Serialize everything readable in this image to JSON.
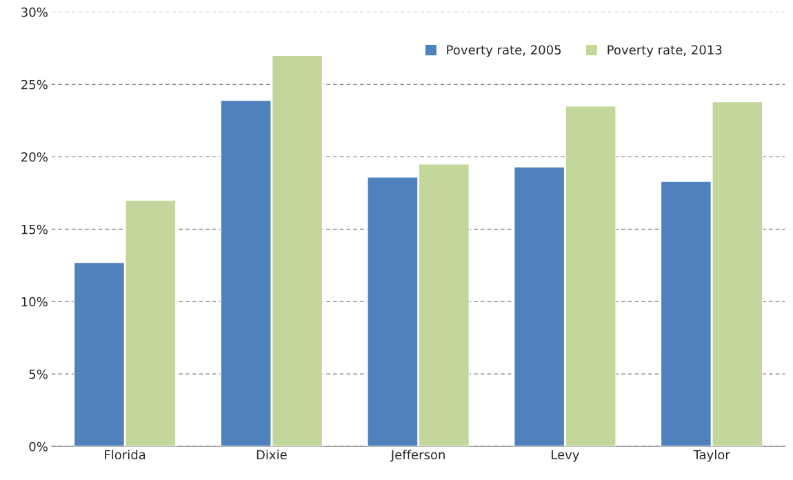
{
  "chart_data": {
    "type": "bar",
    "categories": [
      "Florida",
      "Dixie",
      "Jefferson",
      "Levy",
      "Taylor"
    ],
    "series": [
      {
        "name": "Poverty rate, 2005",
        "color": "#4f81bd",
        "values": [
          12.7,
          23.9,
          18.6,
          19.3,
          18.3
        ]
      },
      {
        "name": "Poverty rate, 2013",
        "color": "#c3d69b",
        "values": [
          17.0,
          27.0,
          19.5,
          23.5,
          23.8
        ]
      }
    ],
    "ylim": [
      0,
      30
    ],
    "yticks": [
      {
        "value": 0,
        "label": "0%"
      },
      {
        "value": 5,
        "label": "5%"
      },
      {
        "value": 10,
        "label": "10%"
      },
      {
        "value": 15,
        "label": "15%"
      },
      {
        "value": 20,
        "label": "20%"
      },
      {
        "value": 25,
        "label": "25%"
      },
      {
        "value": 30,
        "label": "30%"
      }
    ],
    "grid": "y",
    "legend": "top right"
  }
}
